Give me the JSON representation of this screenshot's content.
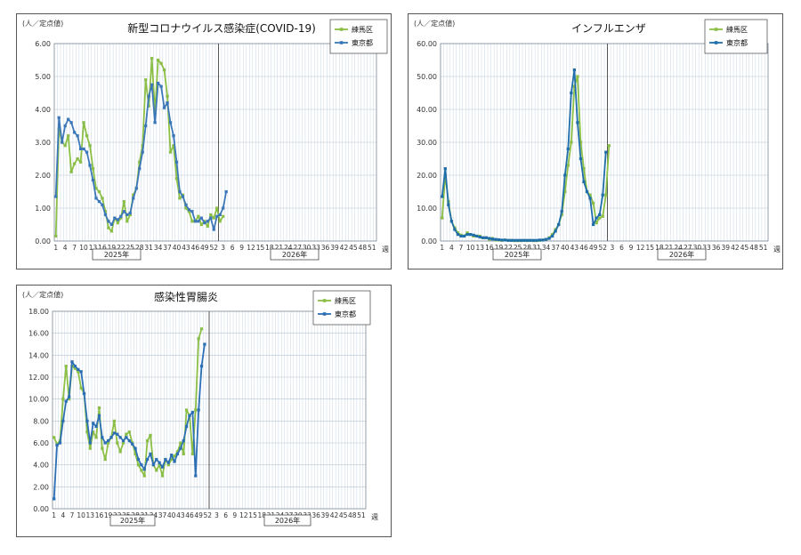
{
  "charts": [
    {
      "type": "line",
      "title": "新型コロナウイルス感染症(COVID-19)",
      "ylabel": "(人／定点値)",
      "xunit": "週",
      "ylim": [
        0,
        6
      ],
      "yticks": [
        "0.00",
        "1.00",
        "2.00",
        "3.00",
        "4.00",
        "5.00",
        "6.00"
      ],
      "year_labels": [
        "2025年",
        "2026年"
      ],
      "x_tick_labels": [
        "1",
        "4",
        "7",
        "10",
        "13",
        "16",
        "19",
        "22",
        "25",
        "28",
        "31",
        "34",
        "37",
        "40",
        "43",
        "46",
        "49",
        "52",
        "3",
        "6",
        "9",
        "12",
        "15",
        "18",
        "21",
        "24",
        "27",
        "30",
        "33",
        "36",
        "39",
        "42",
        "45",
        "48",
        "51"
      ],
      "series": [
        {
          "name": "練馬区",
          "color": "#8cbf46",
          "values": [
            0.15,
            3.4,
            3.0,
            2.9,
            3.2,
            2.1,
            2.35,
            2.5,
            2.4,
            3.6,
            3.2,
            2.9,
            2.2,
            1.6,
            1.5,
            1.3,
            0.9,
            0.4,
            0.3,
            0.7,
            0.55,
            0.7,
            1.2,
            0.6,
            0.8,
            1.4,
            1.6,
            2.4,
            2.9,
            4.9,
            4.1,
            5.55,
            3.9,
            5.5,
            5.4,
            5.2,
            4.4,
            2.7,
            2.9,
            1.9,
            1.3,
            1.4,
            1.0,
            0.9,
            0.6,
            0.6,
            0.75,
            0.5,
            0.6,
            0.45,
            0.8,
            0.7,
            1.0,
            0.6,
            0.75
          ]
        },
        {
          "name": "東京都",
          "color": "#3c78b9",
          "values": [
            1.35,
            3.75,
            3.0,
            3.5,
            3.7,
            3.6,
            3.3,
            3.2,
            2.8,
            2.8,
            2.7,
            2.3,
            1.85,
            1.3,
            1.2,
            1.1,
            0.8,
            0.6,
            0.5,
            0.7,
            0.65,
            0.75,
            0.9,
            0.8,
            0.85,
            1.3,
            1.6,
            2.2,
            2.7,
            3.5,
            4.4,
            4.75,
            3.6,
            4.8,
            4.7,
            4.05,
            4.2,
            3.6,
            3.2,
            2.4,
            1.5,
            1.35,
            1.1,
            0.95,
            0.9,
            0.6,
            0.6,
            0.7,
            0.55,
            0.6,
            0.7,
            0.35,
            0.75,
            0.8,
            1.0,
            1.5
          ]
        }
      ]
    },
    {
      "type": "line",
      "title": "インフルエンザ",
      "ylabel": "(人／定点値)",
      "xunit": "週",
      "ylim": [
        0,
        60
      ],
      "yticks": [
        "0.00",
        "10.00",
        "20.00",
        "30.00",
        "40.00",
        "50.00",
        "60.00"
      ],
      "year_labels": [
        "2025年",
        "2026年"
      ],
      "x_tick_labels": [
        "1",
        "4",
        "7",
        "10",
        "13",
        "16",
        "19",
        "22",
        "25",
        "28",
        "31",
        "34",
        "37",
        "40",
        "43",
        "46",
        "49",
        "52",
        "3",
        "6",
        "9",
        "12",
        "15",
        "18",
        "21",
        "24",
        "27",
        "30",
        "33",
        "36",
        "39",
        "42",
        "45",
        "48",
        "51"
      ],
      "series": [
        {
          "name": "練馬区",
          "color": "#8cbf46",
          "values": [
            7.0,
            20.0,
            12.0,
            6.0,
            4.0,
            2.5,
            1.8,
            1.5,
            2.5,
            2.0,
            1.5,
            1.5,
            1.5,
            1.0,
            1.0,
            0.5,
            0.8,
            0.3,
            0.3,
            0.2,
            0.3,
            0.2,
            0.2,
            0.1,
            0.1,
            0.1,
            0.2,
            0.1,
            0.2,
            0.1,
            0.1,
            0.2,
            0.3,
            0.5,
            1.0,
            2.0,
            3.5,
            5.0,
            8.0,
            15.0,
            23.0,
            30.0,
            47.0,
            50.0,
            30.0,
            22.0,
            15.0,
            14.0,
            11.5,
            5.5,
            7.0,
            7.5,
            14.0,
            29.0
          ]
        },
        {
          "name": "東京都",
          "color": "#1f6eaa",
          "values": [
            13.5,
            22.0,
            11.0,
            6.0,
            3.5,
            2.0,
            1.5,
            1.5,
            2.0,
            2.0,
            1.8,
            1.5,
            1.2,
            1.0,
            1.0,
            0.8,
            0.6,
            0.5,
            0.4,
            0.3,
            0.3,
            0.2,
            0.2,
            0.2,
            0.2,
            0.2,
            0.2,
            0.2,
            0.2,
            0.2,
            0.2,
            0.3,
            0.3,
            0.5,
            0.8,
            1.5,
            3.0,
            5.0,
            9.0,
            20.0,
            28.0,
            45.0,
            52.0,
            36.0,
            25.0,
            18.0,
            15.0,
            13.0,
            5.0,
            7.0,
            8.0,
            14.0,
            27.0
          ]
        }
      ]
    },
    {
      "type": "line",
      "title": "感染性胃腸炎",
      "ylabel": "(人／定点値)",
      "xunit": "週",
      "ylim": [
        0,
        18
      ],
      "yticks": [
        "0.00",
        "2.00",
        "4.00",
        "6.00",
        "8.00",
        "10.00",
        "12.00",
        "14.00",
        "16.00",
        "18.00"
      ],
      "year_labels": [
        "2025年",
        "2026年"
      ],
      "x_tick_labels": [
        "1",
        "4",
        "7",
        "10",
        "13",
        "16",
        "19",
        "22",
        "25",
        "28",
        "31",
        "34",
        "37",
        "40",
        "43",
        "46",
        "49",
        "52",
        "3",
        "6",
        "9",
        "12",
        "15",
        "18",
        "21",
        "24",
        "27",
        "30",
        "33",
        "36",
        "39",
        "42",
        "45",
        "48",
        "51"
      ],
      "series": [
        {
          "name": "練馬区",
          "color": "#8cbf46",
          "values": [
            6.5,
            5.9,
            6.2,
            10.0,
            13.0,
            10.0,
            13.0,
            12.8,
            12.5,
            11.0,
            10.5,
            7.0,
            5.5,
            7.0,
            6.5,
            9.2,
            5.5,
            4.5,
            6.0,
            6.5,
            8.0,
            6.0,
            5.2,
            6.0,
            6.8,
            7.0,
            6.0,
            5.0,
            4.0,
            3.5,
            3.0,
            6.2,
            6.7,
            4.0,
            3.5,
            4.0,
            3.0,
            4.5,
            4.0,
            4.5,
            4.8,
            5.2,
            6.0,
            5.0,
            9.0,
            8.5,
            5.0,
            9.0,
            15.5,
            16.4
          ]
        },
        {
          "name": "東京都",
          "color": "#2b6fb5",
          "values": [
            0.9,
            5.8,
            6.0,
            8.0,
            9.8,
            10.2,
            13.4,
            13.0,
            12.7,
            12.5,
            10.5,
            8.0,
            6.0,
            7.8,
            7.5,
            8.5,
            6.5,
            6.0,
            6.2,
            6.5,
            6.9,
            6.8,
            6.5,
            6.2,
            6.5,
            6.2,
            5.9,
            5.5,
            4.5,
            4.0,
            3.6,
            4.5,
            5.0,
            4.0,
            4.5,
            4.2,
            3.8,
            4.5,
            4.2,
            4.9,
            4.3,
            5.0,
            5.5,
            6.2,
            7.5,
            8.5,
            8.8,
            3.0,
            9.0,
            13.0,
            15.0
          ]
        }
      ]
    }
  ]
}
